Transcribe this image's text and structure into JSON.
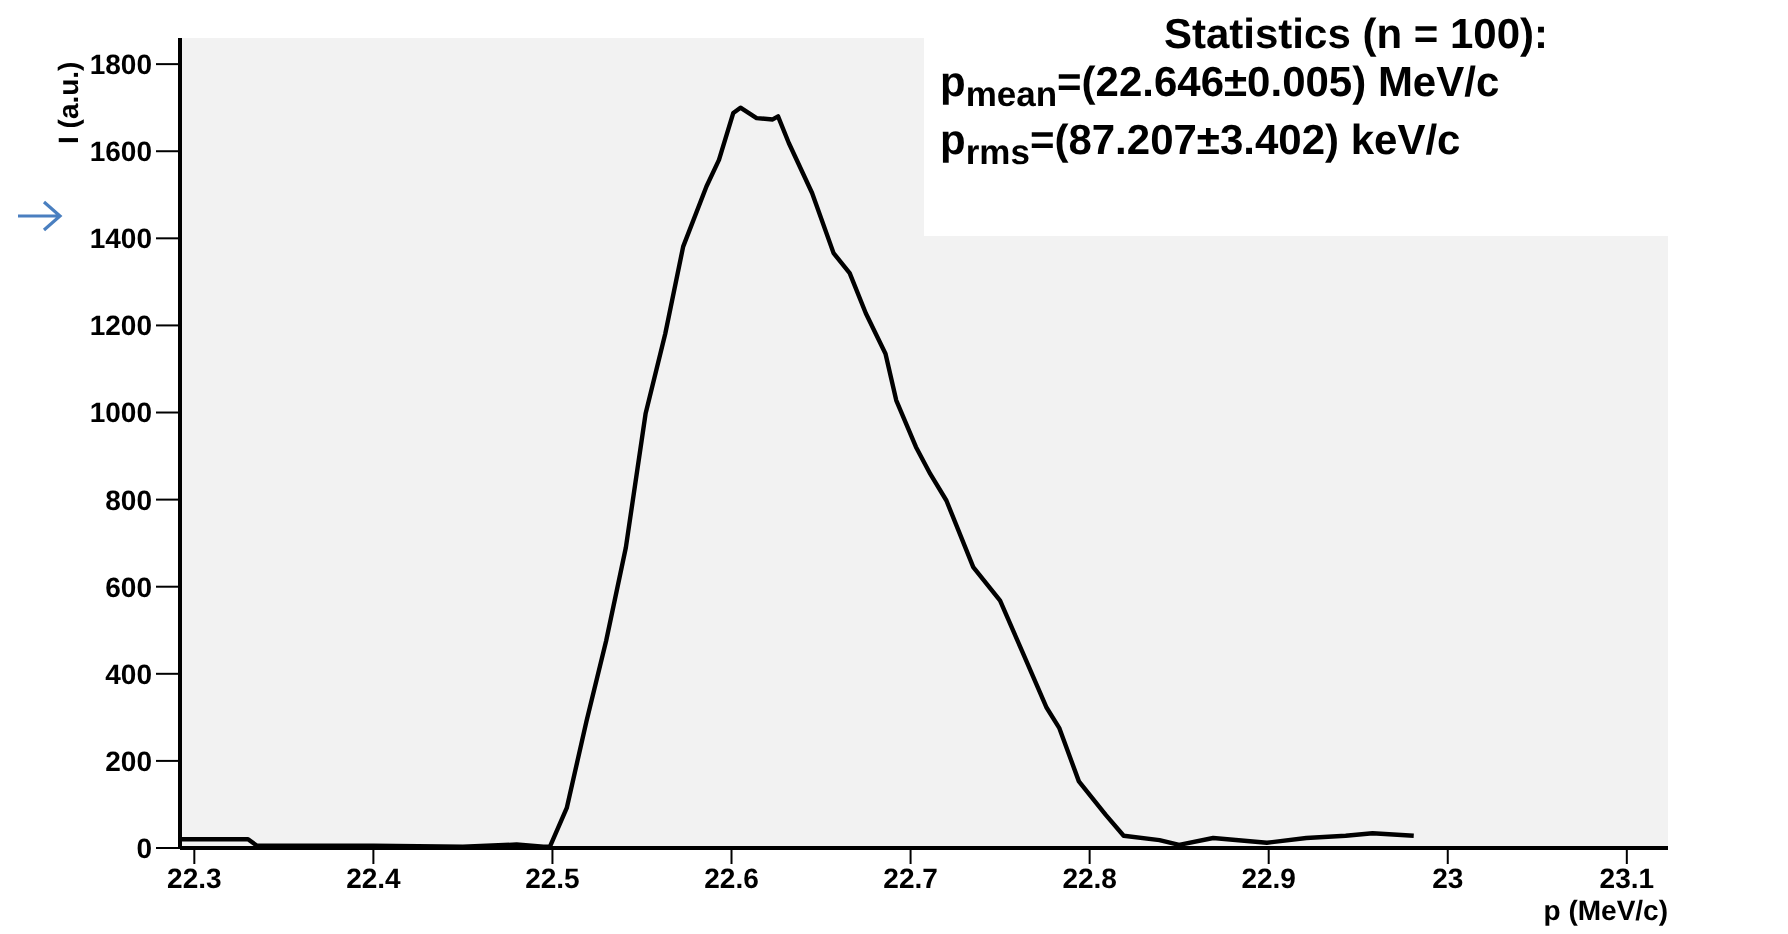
{
  "chart_data": {
    "type": "line",
    "xlabel": "p (MeV/c)",
    "ylabel": "I (a.u.)",
    "annotations": [
      "Statistics (n = 100):",
      "p$_{mean}$=(22.646±0.005) MeV/c",
      "p$_{rms}$=(87.207±3.402) keV/c"
    ],
    "x": [
      22.292,
      22.33,
      22.335,
      22.4,
      22.45,
      22.48,
      22.495,
      22.4986,
      22.508,
      22.519,
      22.53,
      22.541,
      22.552,
      22.563,
      22.573,
      22.586,
      22.593,
      22.601,
      22.605,
      22.614,
      22.623,
      22.626,
      22.632,
      22.645,
      22.657,
      22.666,
      22.675,
      22.686,
      22.692,
      22.703,
      22.711,
      22.72,
      22.735,
      22.75,
      22.763,
      22.776,
      22.783,
      22.794,
      22.809,
      22.819,
      22.839,
      22.85,
      22.869,
      22.899,
      22.921,
      22.943,
      22.958,
      22.981
    ],
    "series": [
      {
        "color": "#000000",
        "values": [
          20,
          20,
          5,
          5,
          3,
          8,
          3,
          3,
          92,
          291,
          476,
          690,
          997,
          1181,
          1381,
          1519,
          1580,
          1688,
          1700,
          1676,
          1673,
          1680,
          1619,
          1504,
          1366,
          1320,
          1228,
          1135,
          1028,
          921,
          859,
          798,
          645,
          568,
          445,
          322,
          276,
          153,
          76,
          28,
          18,
          7,
          23,
          12,
          23,
          28,
          34,
          28
        ]
      }
    ],
    "xlim": [
      22.292,
      23.123
    ],
    "xticks": [
      22.3,
      22.4,
      22.5,
      22.6,
      22.7,
      22.8,
      22.9,
      23,
      23.1
    ],
    "ylim": [
      0,
      1860
    ],
    "yticks": [
      0,
      200,
      400,
      600,
      800,
      1000,
      1200,
      1400,
      1600,
      1800
    ],
    "grid": false,
    "legend": false,
    "marker": "none",
    "line_style": "solid"
  }
}
